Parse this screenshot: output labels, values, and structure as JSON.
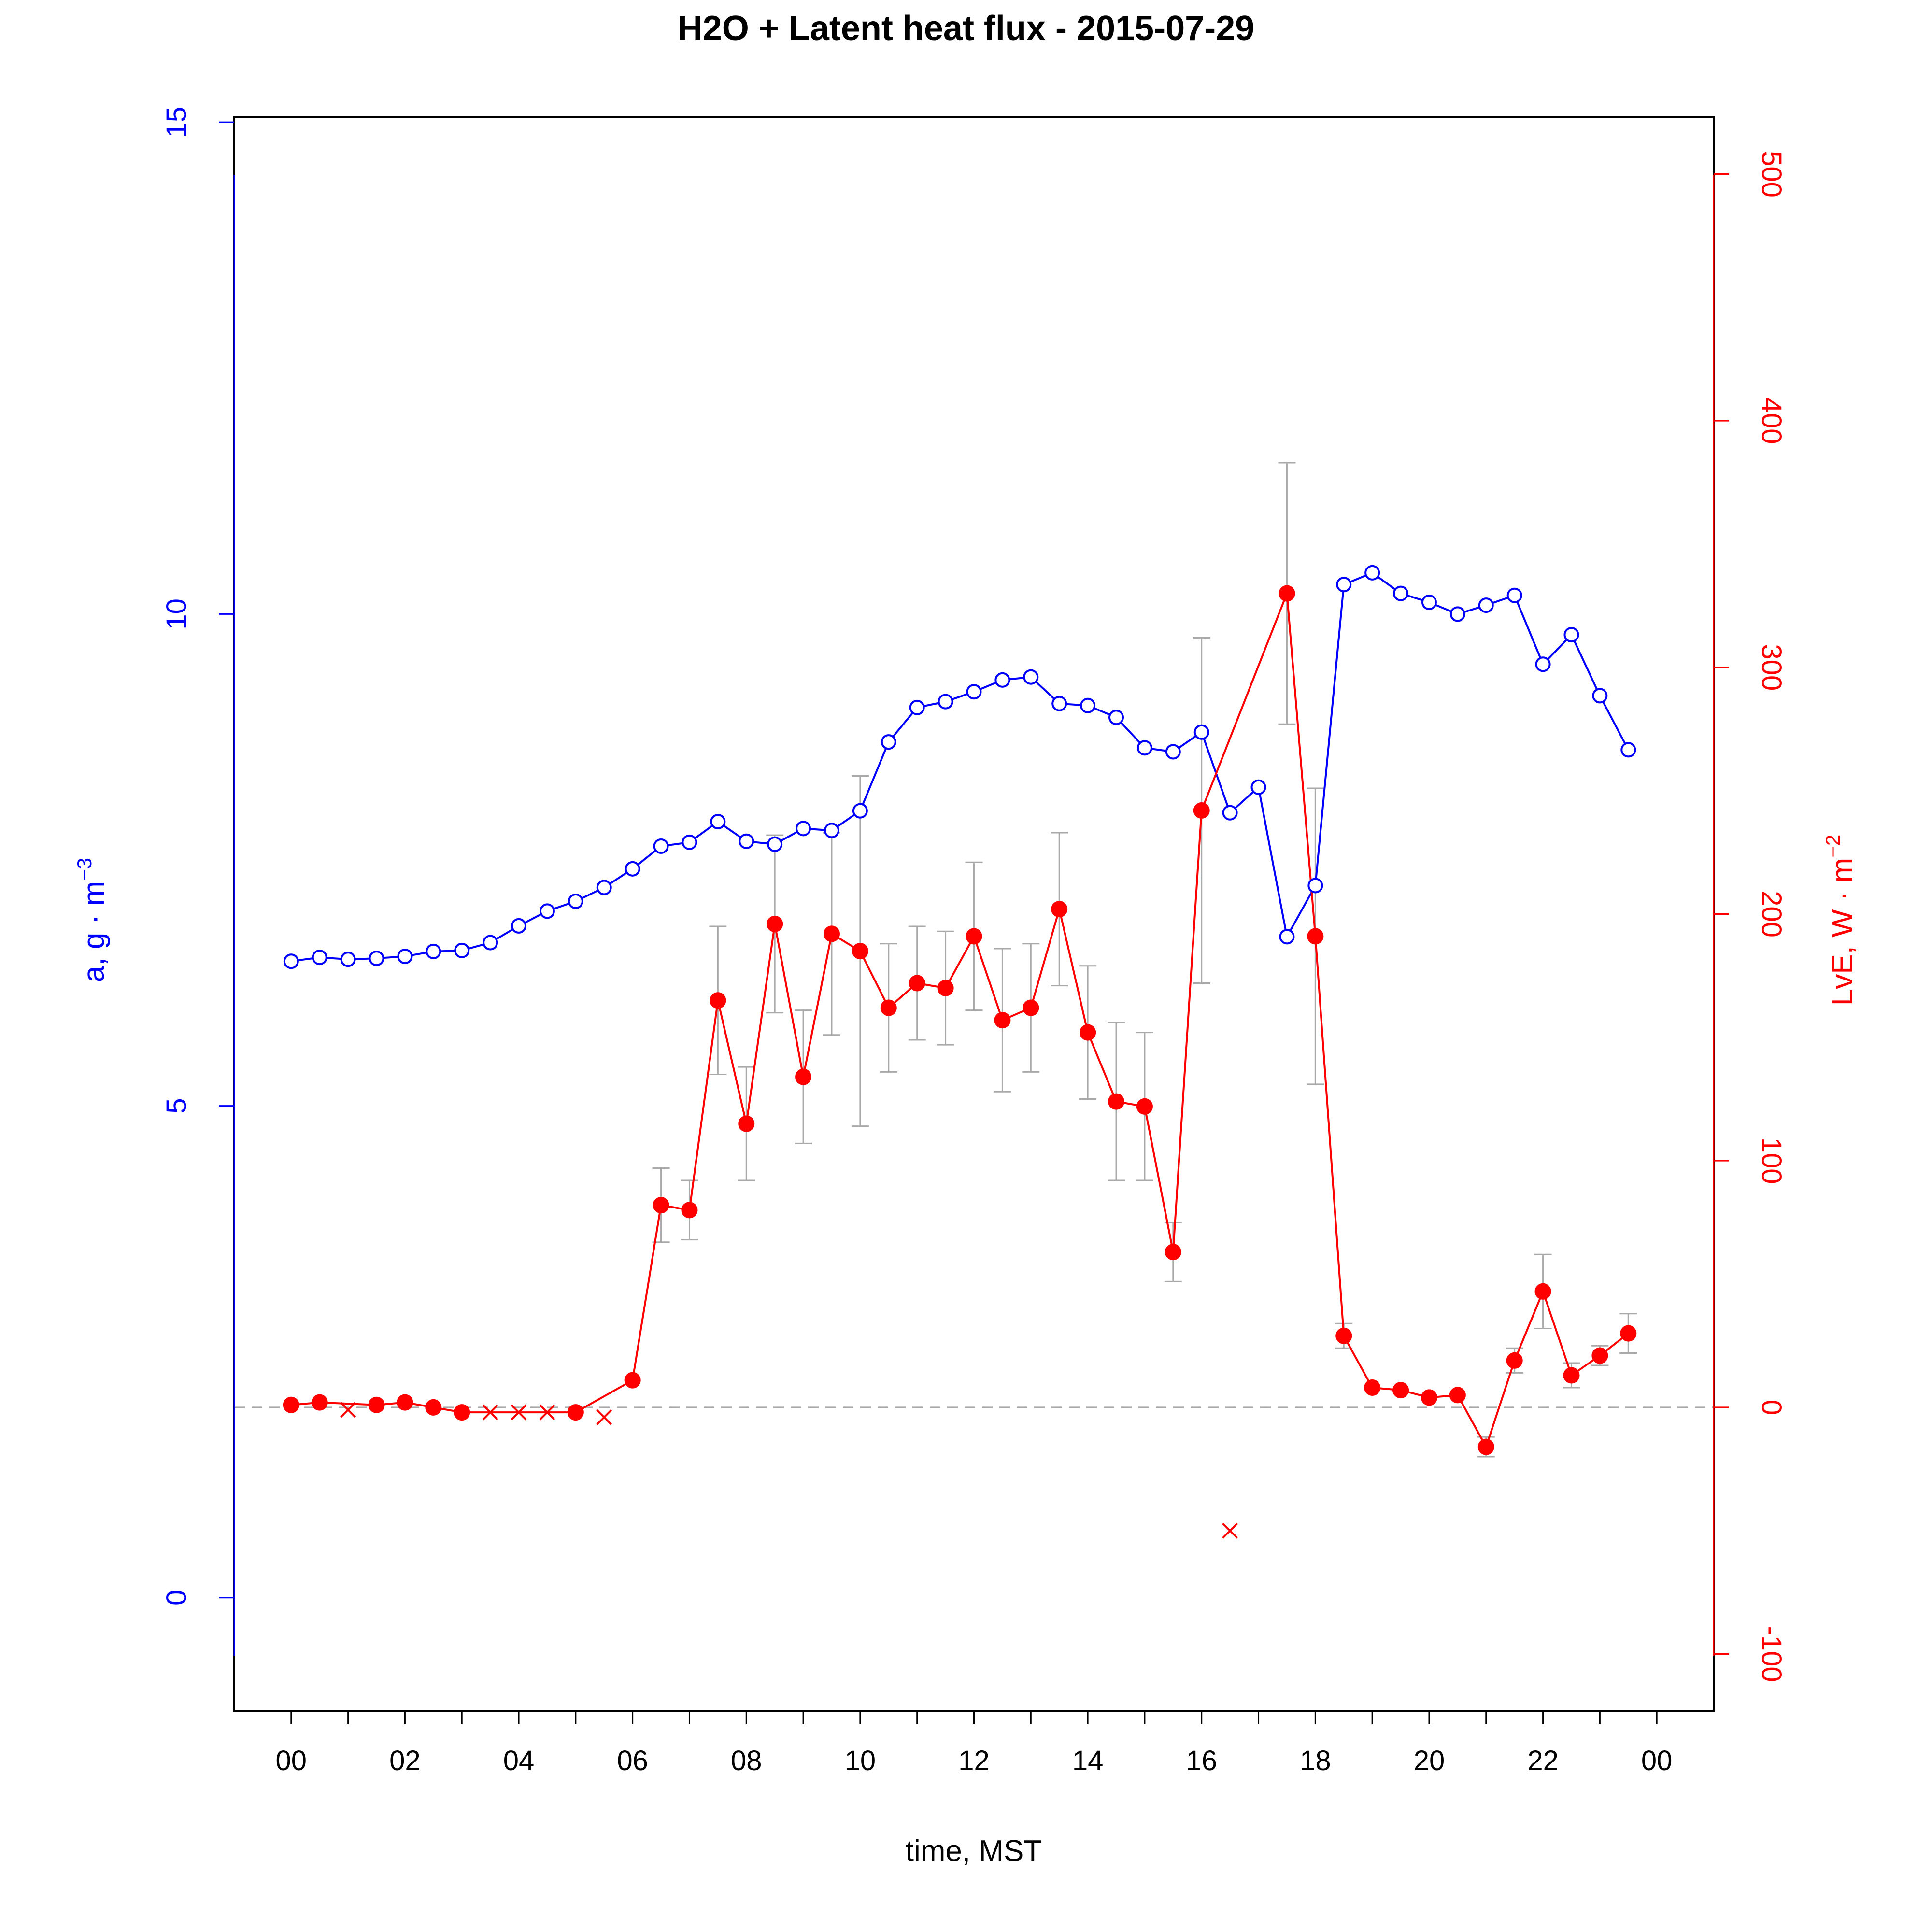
{
  "colors": {
    "h2o": "#0000ff",
    "lve": "#ff0000",
    "errorbar": "#a9a9a9",
    "zero_line": "#a9a9a9",
    "axis": "#000000"
  },
  "chart_data": {
    "type": "line",
    "title": "H2O + Latent heat flux -  2015-07-29",
    "xlabel": "time, MST",
    "ylabel_left": {
      "main": "a, g · m",
      "sup": "−3"
    },
    "ylabel_right": {
      "main": "LvE, W · m",
      "sup": "−2"
    },
    "x_ticks": [
      "00",
      "02",
      "04",
      "06",
      "08",
      "10",
      "12",
      "14",
      "16",
      "18",
      "20",
      "22",
      "00"
    ],
    "x_tick_hours": [
      0,
      2,
      4,
      6,
      8,
      10,
      12,
      14,
      16,
      18,
      20,
      22,
      24
    ],
    "xlim": [
      -1,
      25
    ],
    "ylim_left": [
      -1.15,
      15.05
    ],
    "yticks_left": [
      "0",
      "5",
      "10",
      "15"
    ],
    "ylim_right": [
      -123,
      523
    ],
    "yticks_right": [
      "-100",
      "0",
      "100",
      "200",
      "300",
      "400",
      "500"
    ],
    "zero_line_right": 0,
    "series": [
      {
        "name": "H2O",
        "axis": "left",
        "marker": "open-circle",
        "x": [
          0,
          0.5,
          1,
          1.5,
          2,
          2.5,
          3,
          3.5,
          4,
          4.5,
          5,
          5.5,
          6,
          6.5,
          7,
          7.5,
          8,
          8.5,
          9,
          9.5,
          10,
          10.5,
          11,
          11.5,
          12,
          12.5,
          13,
          13.5,
          14,
          14.5,
          15,
          15.5,
          16,
          16.5,
          17,
          17.5,
          18,
          18.5,
          19,
          19.5,
          20,
          20.5,
          21,
          21.5,
          22,
          22.5,
          23,
          23.5
        ],
        "values": [
          6.47,
          6.51,
          6.49,
          6.5,
          6.52,
          6.57,
          6.58,
          6.66,
          6.83,
          6.98,
          7.08,
          7.22,
          7.41,
          7.64,
          7.68,
          7.89,
          7.69,
          7.66,
          7.82,
          7.8,
          8.0,
          8.7,
          9.05,
          9.11,
          9.21,
          9.33,
          9.36,
          9.09,
          9.07,
          8.95,
          8.64,
          8.6,
          8.8,
          7.98,
          8.24,
          6.72,
          7.24,
          10.3,
          10.42,
          10.21,
          10.12,
          10.0,
          10.09,
          10.19,
          9.49,
          9.79,
          9.17,
          8.62
        ]
      },
      {
        "name": "LvE",
        "axis": "right",
        "marker": "filled-circle",
        "x": [
          0,
          0.5,
          1.5,
          2,
          2.5,
          3,
          5,
          6,
          6.5,
          7,
          7.5,
          8,
          8.5,
          9,
          9.5,
          10,
          10.5,
          11,
          11.5,
          12,
          12.5,
          13,
          13.5,
          14,
          14.5,
          15,
          15.5,
          16,
          17.5,
          18,
          18.5,
          19,
          19.5,
          20,
          20.5,
          21,
          21.5,
          22,
          22.5,
          23,
          23.5
        ],
        "values": [
          1,
          2,
          1,
          2,
          0,
          -2,
          -2,
          11,
          82,
          80,
          165,
          115,
          196,
          134,
          192,
          185,
          162,
          172,
          170,
          191,
          157,
          162,
          202,
          152,
          124,
          122,
          63,
          242,
          330,
          191,
          29,
          8,
          7,
          4,
          5,
          -16,
          19,
          47,
          13,
          21,
          30
        ],
        "err": [
          0,
          0,
          0,
          0,
          0,
          0,
          0,
          0,
          15,
          12,
          30,
          23,
          36,
          27,
          41,
          71,
          26,
          23,
          23,
          30,
          29,
          26,
          31,
          27,
          32,
          30,
          12,
          70,
          53,
          60,
          5,
          0,
          0,
          0,
          0,
          4,
          5,
          15,
          5,
          4,
          8
        ]
      },
      {
        "name": "LvE (flagged)",
        "axis": "right",
        "marker": "x",
        "x": [
          1,
          3.5,
          4,
          4.5,
          5.5,
          16.5
        ],
        "values": [
          -1,
          -2,
          -2,
          -2,
          -4,
          -50
        ]
      }
    ]
  }
}
